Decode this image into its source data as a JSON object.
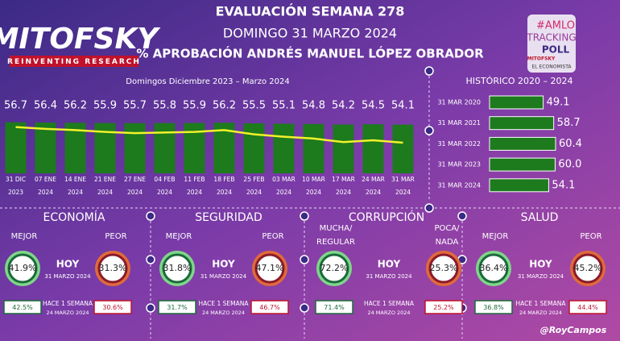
{
  "logo": {
    "name": "MITOFSKY",
    "tagline": "REINVENTING RESEARCH"
  },
  "header": {
    "title": "EVALUACIÓN SEMANA 278",
    "date": "DOMINGO 31 MARZO 2024",
    "subtitle": "% APROBACIÓN ANDRÉS MANUEL LÓPEZ OBRADOR"
  },
  "badge": {
    "hashtag": "#AMLO",
    "line1": "TRACKING",
    "line2": "POLL",
    "brand": "MITOFSKY",
    "partner": "EL ECONOMISTA"
  },
  "chart_data": [
    {
      "type": "bar",
      "title": "Domingos Diciembre 2023 – Marzo 2024",
      "categories": [
        [
          "31 DIC",
          "2023"
        ],
        [
          "07 ENE",
          "2024"
        ],
        [
          "14 ENE",
          "2024"
        ],
        [
          "21 ENE",
          "2024"
        ],
        [
          "27 ENE",
          "2024"
        ],
        [
          "04 FEB",
          "2024"
        ],
        [
          "11 FEB",
          "2024"
        ],
        [
          "18 FEB",
          "2024"
        ],
        [
          "25 FEB",
          "2024"
        ],
        [
          "03 MAR",
          "2024"
        ],
        [
          "10 MAR",
          "2024"
        ],
        [
          "17 MAR",
          "2024"
        ],
        [
          "24 MAR",
          "2024"
        ],
        [
          "31 MAR",
          "2024"
        ]
      ],
      "values": [
        56.7,
        56.4,
        56.2,
        55.9,
        55.7,
        55.8,
        55.9,
        56.2,
        55.5,
        55.1,
        54.8,
        54.2,
        54.5,
        54.1
      ],
      "color": "#1d7a1d",
      "line_color": "#f2f22a",
      "ylim": [
        0,
        60
      ],
      "y2lim": [
        49,
        58
      ]
    },
    {
      "type": "hbar",
      "title": "HISTÓRICO 2020 – 2024",
      "categories": [
        "31 MAR 2020",
        "31 MAR 2021",
        "31 MAR 2022",
        "31 MAR 2023",
        "31 MAR 2024"
      ],
      "values": [
        49.1,
        58.7,
        60.4,
        60,
        54.1
      ],
      "value_labels": [
        "49.1",
        "58.7",
        "60.4",
        "60.0",
        "54.1"
      ],
      "color": "#1d7a1d",
      "xlim": [
        0,
        70
      ]
    }
  ],
  "panels": [
    {
      "title": "ECONOMÍA",
      "left_label": [
        "MEJOR"
      ],
      "right_label": [
        "PEOR"
      ],
      "now_label": "HOY",
      "now_date": "31 MARZO 2024",
      "now_left": "41.9%",
      "now_right": "31.3%",
      "prev_label": "HACE 1 SEMANA",
      "prev_date": "24 MARZO 2024",
      "prev_left": "42.5%",
      "prev_right": "30.6%"
    },
    {
      "title": "SEGURIDAD",
      "left_label": [
        "MEJOR"
      ],
      "right_label": [
        "PEOR"
      ],
      "now_label": "HOY",
      "now_date": "31 MARZO 2024",
      "now_left": "31.8%",
      "now_right": "47.1%",
      "prev_label": "HACE 1 SEMANA",
      "prev_date": "24 MARZO 2024",
      "prev_left": "31.7%",
      "prev_right": "46.7%"
    },
    {
      "title": "CORRUPCIÓN",
      "left_label": [
        "MUCHA/",
        "REGULAR"
      ],
      "right_label": [
        "POCA/",
        "NADA"
      ],
      "now_label": "HOY",
      "now_date": "31 MARZO 2024",
      "now_left": "72.2%",
      "now_right": "25.3%",
      "prev_label": "HACE 1 SEMANA",
      "prev_date": "24 MARZO 2024",
      "prev_left": "71.4%",
      "prev_right": "25.2%"
    },
    {
      "title": "SALUD",
      "left_label": [
        "MEJOR"
      ],
      "right_label": [
        "PEOR"
      ],
      "now_label": "HOY",
      "now_date": "31 MARZO 2024",
      "now_left": "36.4%",
      "now_right": "45.2%",
      "prev_label": "HACE 1 SEMANA",
      "prev_date": "24 MARZO 2024",
      "prev_left": "36.8%",
      "prev_right": "44.4%"
    }
  ],
  "credit": "@RoyCampos"
}
